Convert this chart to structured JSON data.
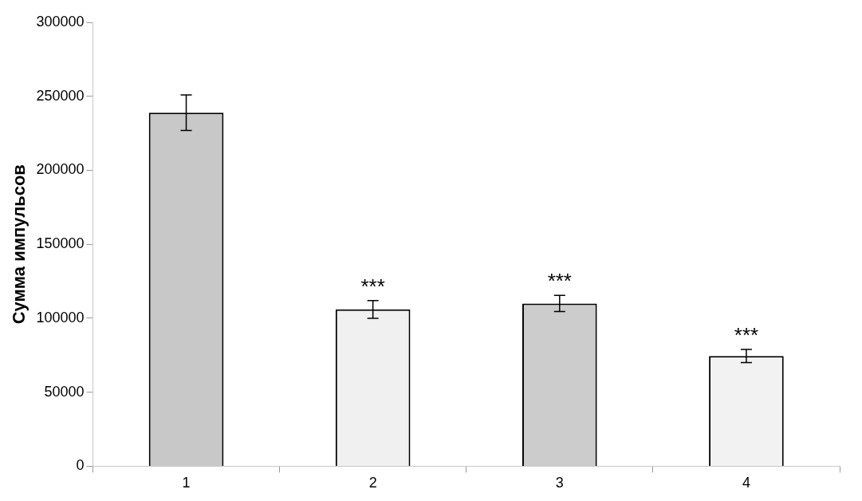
{
  "chart_data": {
    "type": "bar",
    "ylabel": "Сумма импульсов",
    "categories": [
      "1",
      "2",
      "3",
      "4"
    ],
    "values": [
      239000,
      106000,
      110000,
      74500
    ],
    "errors": [
      12000,
      6000,
      5500,
      4500
    ],
    "colors": [
      "#c8c8c8",
      "#f0f0f0",
      "#cccccc",
      "#f2f2f2"
    ],
    "value_labels": [
      null,
      "***",
      "***",
      "***"
    ],
    "ylim": [
      0,
      300000
    ],
    "yticks": [
      0,
      50000,
      100000,
      150000,
      200000,
      250000,
      300000
    ],
    "grid": false,
    "legend": false
  }
}
